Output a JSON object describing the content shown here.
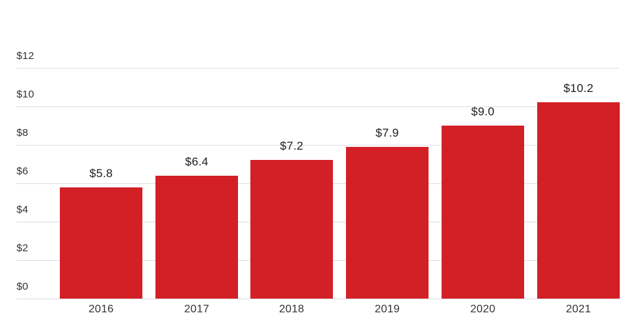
{
  "chart_data": {
    "type": "bar",
    "title": "",
    "xlabel": "",
    "ylabel": "",
    "categories": [
      "2016",
      "2017",
      "2018",
      "2019",
      "2020",
      "2021"
    ],
    "values": [
      5.8,
      6.4,
      7.2,
      7.9,
      9.0,
      10.2
    ],
    "value_labels": [
      "$5.8",
      "$6.4",
      "$7.2",
      "$7.9",
      "$9.0",
      "$10.2"
    ],
    "ylim": [
      0,
      12
    ],
    "yticks": [
      {
        "value": 0,
        "label": "$0"
      },
      {
        "value": 2,
        "label": "$2"
      },
      {
        "value": 4,
        "label": "$4"
      },
      {
        "value": 6,
        "label": "$6"
      },
      {
        "value": 8,
        "label": "$8"
      },
      {
        "value": 10,
        "label": "$10"
      },
      {
        "value": 12,
        "label": "$12"
      }
    ],
    "grid": true,
    "legend": false,
    "bar_color": "#d32027",
    "gridline_color": "#dedede",
    "value_label_color": "#1d1d1d",
    "axis_label_color": "#333333"
  }
}
